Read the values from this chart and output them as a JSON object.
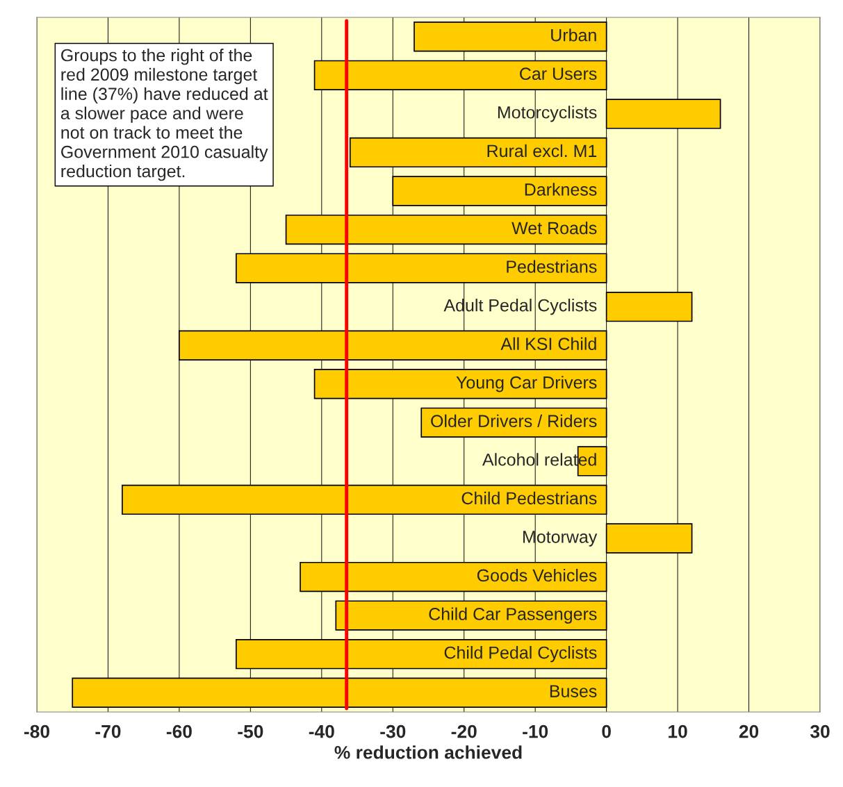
{
  "chart_data": {
    "type": "bar",
    "orientation": "horizontal",
    "xlabel": "% reduction achieved",
    "categories": [
      "Urban",
      "Car Users",
      "Motorcyclists",
      "Rural excl. M1",
      "Darkness",
      "Wet Roads",
      "Pedestrians",
      "Adult Pedal Cyclists",
      "All KSI Child",
      "Young Car Drivers",
      "Older Drivers / Riders",
      "Alcohol related",
      "Child Pedestrians",
      "Motorway",
      "Goods Vehicles",
      "Child Car Passengers",
      "Child Pedal Cyclists",
      "Buses"
    ],
    "values": [
      -27,
      -41,
      16,
      -36,
      -30,
      -45,
      -52,
      12,
      -60,
      -41,
      -26,
      -4,
      -68,
      12,
      -43,
      -38,
      -52,
      -75
    ],
    "color": "#ffcc00",
    "xlim": [
      -80,
      30
    ],
    "xticks": [
      -80,
      -70,
      -60,
      -50,
      -40,
      -30,
      -20,
      -10,
      0,
      10,
      20,
      30
    ],
    "grid": "x",
    "ref_lines": [
      {
        "axis": "x",
        "value": -36.5,
        "color": "#ff0000"
      }
    ],
    "annotations": [
      "Groups to the right of the\nred 2009 milestone target\nline (37%) have reduced at\na slower pace and were\nnot on track to meet the\nGovernment 2010 casualty\nreduction target."
    ]
  }
}
